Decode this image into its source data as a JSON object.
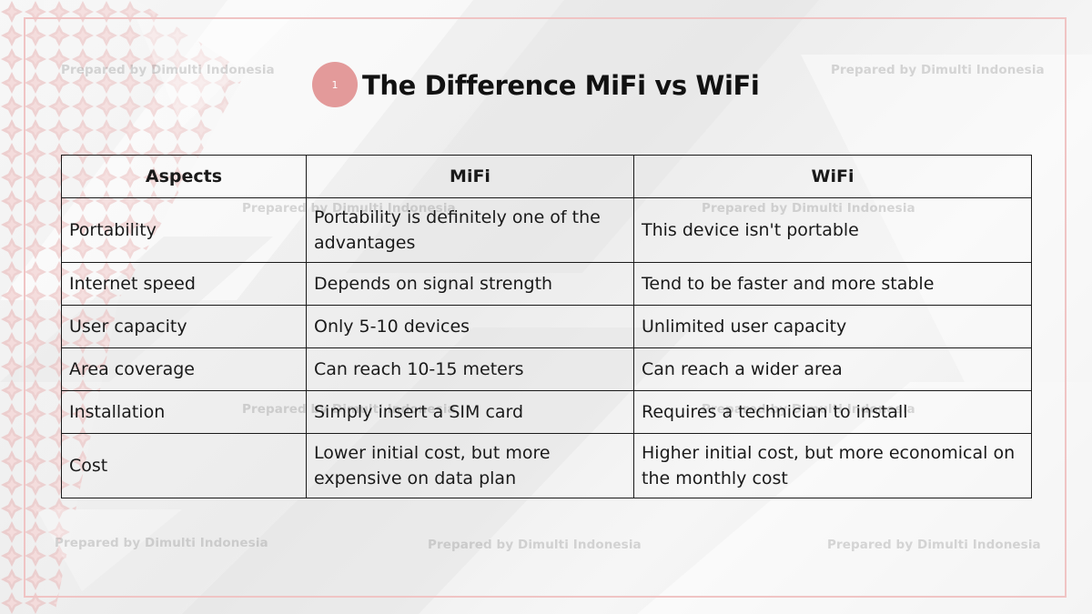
{
  "slide": {
    "badge_number": "1",
    "title": "The Difference MiFi vs WiFi",
    "watermark_text": "Prepared by Dimulti Indonesia"
  },
  "table": {
    "headers": [
      "Aspects",
      "MiFi",
      "WiFi"
    ],
    "rows": [
      [
        "Portability",
        "Portability is definitely one of the advantages",
        "This device isn't portable"
      ],
      [
        "Internet speed",
        "Depends on signal strength",
        "Tend to be faster and more stable"
      ],
      [
        "User capacity",
        "Only 5-10 devices",
        "Unlimited user capacity"
      ],
      [
        "Area coverage",
        "Can reach 10-15 meters",
        "Can reach a wider area"
      ],
      [
        "Installation",
        "Simply insert a SIM card",
        "Requires a technician to install"
      ],
      [
        "Cost",
        "Lower initial cost, but more expensive on data plan",
        "Higher initial cost, but more economical on the monthly cost"
      ]
    ]
  },
  "colors": {
    "accent": "#e39a9a",
    "frame": "#f0c4c4",
    "text": "#111111"
  }
}
